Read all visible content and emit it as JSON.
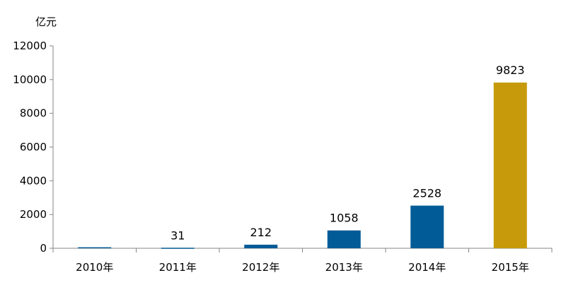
{
  "chart_data": {
    "type": "bar",
    "ylabel": "亿元",
    "ylim": [
      0,
      12000
    ],
    "yticks": [
      "0",
      "2000",
      "4000",
      "6000",
      "8000",
      "10000",
      "12000"
    ],
    "categories": [
      "2010年",
      "2011年",
      "2012年",
      "2013年",
      "2014年",
      "2015年"
    ],
    "values": [
      60,
      31,
      212,
      1058,
      2528,
      9823
    ],
    "data_labels": [
      "",
      "31",
      "212",
      "1058",
      "2528",
      "9823"
    ],
    "grid": false,
    "legend": "none",
    "colors": [
      "#005b96",
      "#005b96",
      "#005b96",
      "#005b96",
      "#005b96",
      "#c79a0c"
    ],
    "axis_color": "#868686"
  }
}
